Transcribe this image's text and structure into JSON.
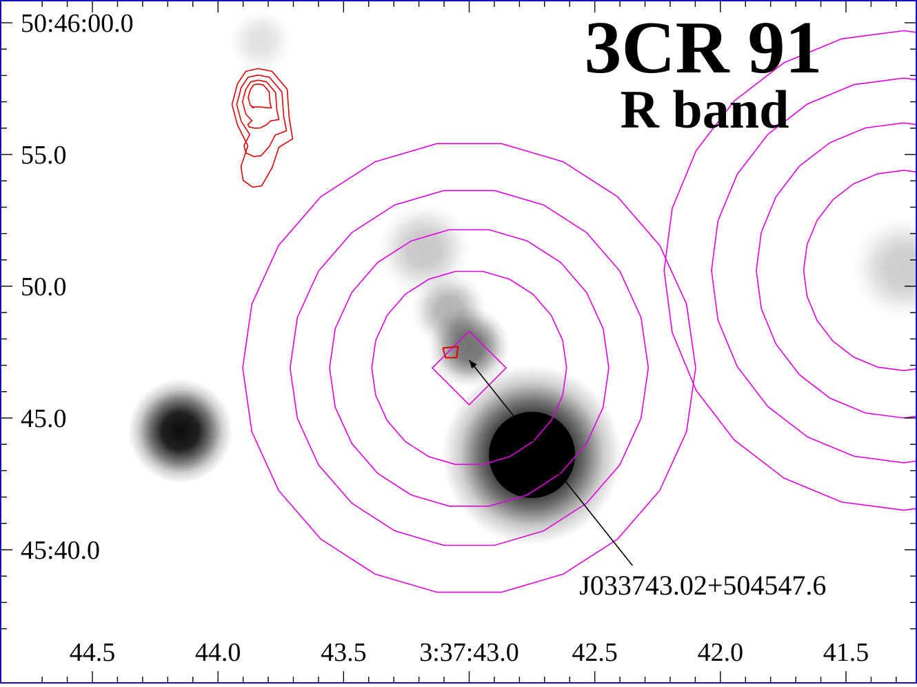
{
  "chart_data": {
    "type": "image",
    "title": "3CR 91",
    "subtitle": "R band",
    "x_ticks": [
      {
        "ra_sec": 44.5,
        "label": "44.5"
      },
      {
        "ra_sec": 44.0,
        "label": "44.0"
      },
      {
        "ra_sec": 43.5,
        "label": "43.5"
      },
      {
        "ra_sec": 43.0,
        "label": "3:37:43.0"
      },
      {
        "ra_sec": 42.5,
        "label": "42.5"
      },
      {
        "ra_sec": 42.0,
        "label": "42.0"
      },
      {
        "ra_sec": 41.5,
        "label": "41.5"
      }
    ],
    "y_ticks": [
      {
        "dec_sec": 60,
        "label": "50:46:00.0"
      },
      {
        "dec_sec": 55,
        "label": "55.0"
      },
      {
        "dec_sec": 50,
        "label": "50.0"
      },
      {
        "dec_sec": 45,
        "label": "45.0"
      },
      {
        "dec_sec": 40,
        "label": "45:40.0"
      }
    ],
    "xlim": [
      44.7,
      41.27
    ],
    "ylim": [
      37.0,
      60.9
    ],
    "optical_sources": [
      {
        "ra_sec": 44.15,
        "dec_sec": 44.5,
        "sigma_arcsec": 0.9,
        "peak": 0.95
      },
      {
        "ra_sec": 42.75,
        "dec_sec": 43.6,
        "sigma_arcsec": 1.55,
        "peak": 1.0,
        "saturated": true
      },
      {
        "ra_sec": 43.0,
        "dec_sec": 47.7,
        "sigma_arcsec": 0.7,
        "peak": 0.55
      },
      {
        "ra_sec": 43.08,
        "dec_sec": 49.1,
        "sigma_arcsec": 0.65,
        "peak": 0.3
      },
      {
        "ra_sec": 43.18,
        "dec_sec": 51.4,
        "sigma_arcsec": 0.8,
        "peak": 0.22
      },
      {
        "ra_sec": 43.83,
        "dec_sec": 59.3,
        "sigma_arcsec": 0.55,
        "peak": 0.12
      },
      {
        "ra_sec": 41.27,
        "dec_sec": 50.7,
        "sigma_arcsec": 0.9,
        "peak": 0.2
      }
    ],
    "xray_contours": {
      "color": "#e000e0",
      "center": {
        "ra_sec": 43.0,
        "dec_sec": 46.9
      },
      "radii_arcsec": [
        1.4,
        3.7,
        5.3,
        6.8,
        8.6
      ],
      "offset_source": {
        "ra_sec": 41.27,
        "dec_sec": 50.6,
        "radii_arcsec": [
          3.8,
          5.6,
          7.3,
          9.1
        ]
      }
    },
    "radio_contours": {
      "color": "#e00000",
      "lobe": {
        "ra_sec": 43.84,
        "dec_sec": 56.9
      },
      "core": {
        "ra_sec": 43.05,
        "dec_sec": 47.5
      }
    },
    "annotation": {
      "label": "J033743.02+504547.6",
      "arrow_tail": {
        "ra_sec": 42.35,
        "dec_sec": 39.4
      },
      "arrow_head": {
        "ra_sec": 43.0,
        "dec_sec": 47.2
      }
    },
    "colors": {
      "frame": "#1010c0",
      "xray": "#e000e0",
      "radio": "#e00000",
      "arrow": "#000000"
    }
  }
}
